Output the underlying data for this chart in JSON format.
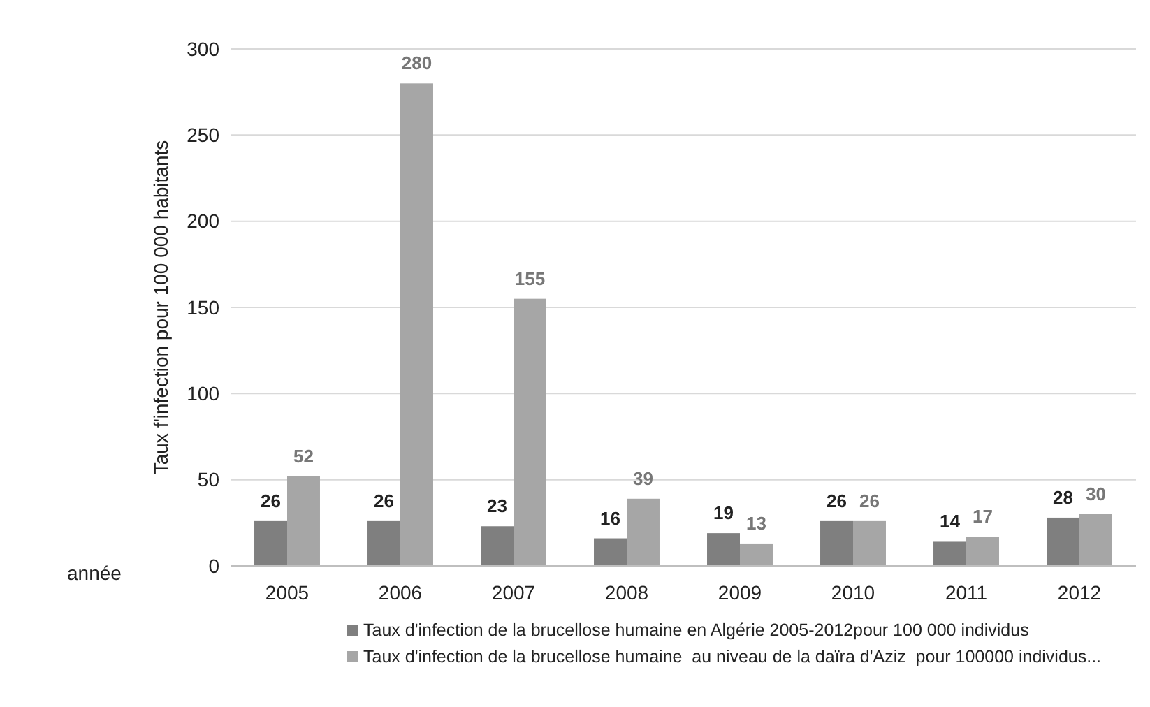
{
  "chart_data": {
    "type": "bar",
    "ylabel": "Taux f'infection pour 100 000 habitants",
    "xlabel": "année",
    "categories": [
      "2005",
      "2006",
      "2007",
      "2008",
      "2009",
      "2010",
      "2011",
      "2012"
    ],
    "series": [
      {
        "name": "Taux d'infection de la brucellose humaine en Algérie 2005-2012pour 100 000 individus",
        "color": "#7f7f7f",
        "values": [
          26,
          26,
          23,
          16,
          19,
          26,
          14,
          28
        ]
      },
      {
        "name": "Taux d'infection de la brucellose humaine  au niveau de la daïra d'Aziz  pour 100000 individus...",
        "color": "#a6a6a6",
        "values": [
          52,
          280,
          155,
          39,
          13,
          26,
          17,
          30
        ]
      }
    ],
    "ylim": [
      0,
      300
    ],
    "yticks": [
      0,
      50,
      100,
      150,
      200,
      250,
      300
    ],
    "grid": "y",
    "data_labels": true,
    "legend": "bottom"
  }
}
